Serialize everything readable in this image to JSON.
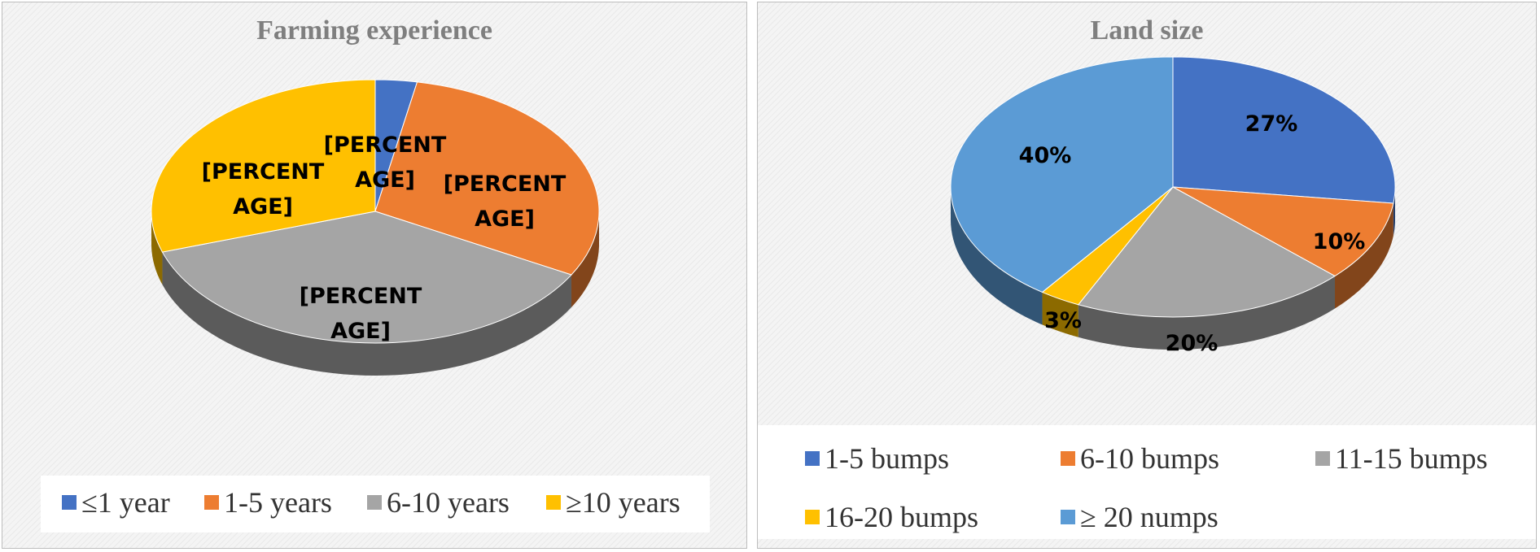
{
  "chart_data": [
    {
      "type": "pie",
      "title": "Farming experience",
      "style": "3d",
      "slices": [
        {
          "label": "≤1 year",
          "value": 3,
          "data_label": "[PERCENT\nAGE]",
          "color": "#4472C4"
        },
        {
          "label": "1-5 years",
          "value": 30,
          "data_label": "[PERCENT\nAGE]",
          "color": "#ED7D31"
        },
        {
          "label": "6-10 years",
          "value": 37,
          "data_label": "[PERCENT\nAGE]",
          "color": "#A5A5A5"
        },
        {
          "label": "≥10 years",
          "value": 30,
          "data_label": "[PERCENT\nAGE]",
          "color": "#FFC000"
        }
      ],
      "legend_position": "bottom"
    },
    {
      "type": "pie",
      "title": "Land size",
      "style": "3d",
      "slices": [
        {
          "label": "1-5 bumps",
          "value": 27,
          "data_label": "27%",
          "color": "#4472C4"
        },
        {
          "label": "6-10 bumps",
          "value": 10,
          "data_label": "10%",
          "color": "#ED7D31"
        },
        {
          "label": "11-15 bumps",
          "value": 20,
          "data_label": "20%",
          "color": "#A5A5A5"
        },
        {
          "label": "16-20 bumps",
          "value": 3,
          "data_label": "3%",
          "color": "#FFC000"
        },
        {
          "label": "≥ 20 numps",
          "value": 40,
          "data_label": "40%",
          "color": "#5B9BD5"
        }
      ],
      "legend_position": "bottom"
    }
  ]
}
